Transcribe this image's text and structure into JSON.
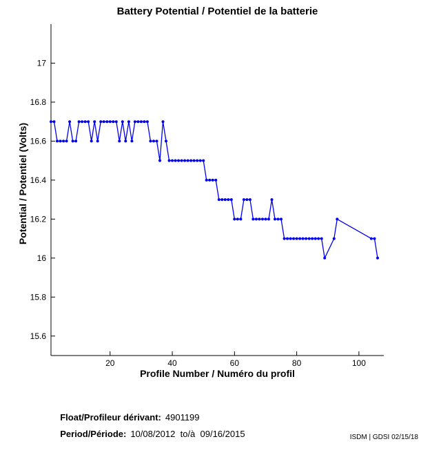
{
  "title": "Battery Potential / Potentiel de la batterie",
  "footer": {
    "float_label": "Float/Profileur dérivant:",
    "float_value": "4901199",
    "period_label": "Period/Période:",
    "period_value": "10/08/2012  to/à  09/16/2015"
  },
  "watermark": "ISDM | GDSI 02/15/18",
  "chart_data": {
    "type": "line",
    "title": "Battery Potential / Potentiel de la batterie",
    "xlabel": "Profile Number / Numéro du profil",
    "ylabel": "Potential / Potentiel (Volts)",
    "xlim": [
      1,
      108
    ],
    "ylim": [
      15.5,
      17.2
    ],
    "xticks": [
      20,
      40,
      60,
      80,
      100
    ],
    "yticks": [
      15.6,
      15.8,
      16,
      16.2,
      16.4,
      16.6,
      16.8,
      17
    ],
    "grid": false,
    "legend": "none",
    "box": "left-bottom-only",
    "line_color": "#0000ee",
    "axis_color": "#000000",
    "marker": "dot",
    "series": [
      {
        "name": "battery-potential",
        "points": [
          [
            1,
            16.7
          ],
          [
            2,
            16.7
          ],
          [
            3,
            16.6
          ],
          [
            4,
            16.6
          ],
          [
            5,
            16.6
          ],
          [
            6,
            16.6
          ],
          [
            7,
            16.7
          ],
          [
            8,
            16.6
          ],
          [
            9,
            16.6
          ],
          [
            10,
            16.7
          ],
          [
            11,
            16.7
          ],
          [
            12,
            16.7
          ],
          [
            13,
            16.7
          ],
          [
            14,
            16.6
          ],
          [
            15,
            16.7
          ],
          [
            16,
            16.6
          ],
          [
            17,
            16.7
          ],
          [
            18,
            16.7
          ],
          [
            19,
            16.7
          ],
          [
            20,
            16.7
          ],
          [
            21,
            16.7
          ],
          [
            22,
            16.7
          ],
          [
            23,
            16.6
          ],
          [
            24,
            16.7
          ],
          [
            25,
            16.6
          ],
          [
            26,
            16.7
          ],
          [
            27,
            16.6
          ],
          [
            28,
            16.7
          ],
          [
            29,
            16.7
          ],
          [
            30,
            16.7
          ],
          [
            31,
            16.7
          ],
          [
            32,
            16.7
          ],
          [
            33,
            16.6
          ],
          [
            34,
            16.6
          ],
          [
            35,
            16.6
          ],
          [
            36,
            16.5
          ],
          [
            37,
            16.7
          ],
          [
            38,
            16.6
          ],
          [
            39,
            16.5
          ],
          [
            40,
            16.5
          ],
          [
            41,
            16.5
          ],
          [
            42,
            16.5
          ],
          [
            43,
            16.5
          ],
          [
            44,
            16.5
          ],
          [
            45,
            16.5
          ],
          [
            46,
            16.5
          ],
          [
            47,
            16.5
          ],
          [
            48,
            16.5
          ],
          [
            49,
            16.5
          ],
          [
            50,
            16.5
          ],
          [
            51,
            16.4
          ],
          [
            52,
            16.4
          ],
          [
            53,
            16.4
          ],
          [
            54,
            16.4
          ],
          [
            55,
            16.3
          ],
          [
            56,
            16.3
          ],
          [
            57,
            16.3
          ],
          [
            58,
            16.3
          ],
          [
            59,
            16.3
          ],
          [
            60,
            16.2
          ],
          [
            61,
            16.2
          ],
          [
            62,
            16.2
          ],
          [
            63,
            16.3
          ],
          [
            64,
            16.3
          ],
          [
            65,
            16.3
          ],
          [
            66,
            16.2
          ],
          [
            67,
            16.2
          ],
          [
            68,
            16.2
          ],
          [
            69,
            16.2
          ],
          [
            70,
            16.2
          ],
          [
            71,
            16.2
          ],
          [
            72,
            16.3
          ],
          [
            73,
            16.2
          ],
          [
            74,
            16.2
          ],
          [
            75,
            16.2
          ],
          [
            76,
            16.1
          ],
          [
            77,
            16.1
          ],
          [
            78,
            16.1
          ],
          [
            79,
            16.1
          ],
          [
            80,
            16.1
          ],
          [
            81,
            16.1
          ],
          [
            82,
            16.1
          ],
          [
            83,
            16.1
          ],
          [
            84,
            16.1
          ],
          [
            85,
            16.1
          ],
          [
            86,
            16.1
          ],
          [
            87,
            16.1
          ],
          [
            88,
            16.1
          ],
          [
            89,
            16.0
          ],
          [
            92,
            16.1
          ],
          [
            93,
            16.2
          ],
          [
            104,
            16.1
          ],
          [
            105,
            16.1
          ],
          [
            106,
            16.0
          ]
        ]
      }
    ]
  }
}
